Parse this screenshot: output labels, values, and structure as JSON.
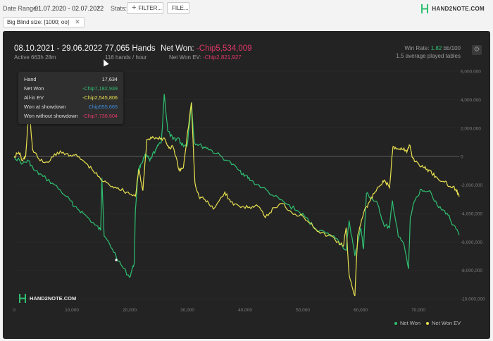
{
  "toolbar": {
    "date_range_label": "Date Range:",
    "date_range_value": "01.07.2020 - 02.07.2022",
    "stats_label": "Stats:",
    "filter_button": "FILTER...",
    "file_button": "FILE...",
    "brand": "HAND2NOTE.COM"
  },
  "filter_chip": {
    "label": "Big Blind size: [1000; oo]",
    "remove_icon": "close-icon"
  },
  "summary": {
    "period": "08.10.2021 - 29.06.2022",
    "active_time": "Active 663h 28m",
    "hands": "77,065 Hands",
    "hands_rate": "116 hands / hour",
    "net_won_label": "Net Won:",
    "net_won_value": "-Chip5,534,009",
    "net_won_ev_label": "Net Won  EV:",
    "net_won_ev_value": "-Chip2,821,927",
    "win_rate_label": "Win Rate:",
    "win_rate_value": "1.82",
    "win_rate_unit": "bb/100",
    "avg_tables": "1.5 average played tables",
    "settings_icon": "gear-icon"
  },
  "tooltip": {
    "rows": [
      {
        "label": "Hand",
        "value": "17,634"
      },
      {
        "label": "Net Won",
        "value": "-Chip7,182,939"
      },
      {
        "label": "All-in EV",
        "value": "-Chip2,545,806"
      },
      {
        "label": "Won at showdown",
        "value": "Chip555,665"
      },
      {
        "label": "Won without showdown",
        "value": "-Chip7,738,604"
      }
    ]
  },
  "chart_brand": "HAND2NOTE.COM",
  "colors": {
    "net_won": "#2fbf71",
    "net_won_ev": "#e8e04f",
    "negative": "#e0386a",
    "showdown": "#3f8fe0",
    "panel_bg": "#232323"
  },
  "chart_data": {
    "type": "line",
    "ylim": [
      -10000000,
      6000000
    ],
    "xlim": [
      0,
      77065
    ],
    "x_ticks": [
      "0",
      "10,000",
      "20,000",
      "30,000",
      "40,000",
      "50,000",
      "60,000",
      "70,000"
    ],
    "y_ticks": [
      "6,000,000",
      "4,000,000",
      "2,000,000",
      "0",
      "-2,000,000",
      "-4,000,000",
      "-6,000,000",
      "-8,000,000",
      "-10,000,000"
    ],
    "legend": [
      "Net Won",
      "Net Won  EV"
    ],
    "series": [
      {
        "name": "Net Won",
        "points": [
          [
            0,
            0
          ],
          [
            1500,
            -500000
          ],
          [
            2500,
            -300000
          ],
          [
            3500,
            -1000000
          ],
          [
            5000,
            -1400000
          ],
          [
            7000,
            -2000000
          ],
          [
            9000,
            -2800000
          ],
          [
            10500,
            -3500000
          ],
          [
            12000,
            -4000000
          ],
          [
            14000,
            -4800000
          ],
          [
            15000,
            -5200000
          ],
          [
            15200,
            -1500000
          ],
          [
            15600,
            -5600000
          ],
          [
            17000,
            -6500000
          ],
          [
            18500,
            -7600000
          ],
          [
            20000,
            -8500000
          ],
          [
            20800,
            -7500000
          ],
          [
            21000,
            -3800000
          ],
          [
            21500,
            -1000000
          ],
          [
            22000,
            -500000
          ],
          [
            22800,
            100000
          ],
          [
            23500,
            -300000
          ],
          [
            24500,
            500000
          ],
          [
            25500,
            1000000
          ],
          [
            26000,
            4400000
          ],
          [
            26600,
            1800000
          ],
          [
            27500,
            1200000
          ],
          [
            28500,
            1300000
          ],
          [
            29000,
            800000
          ],
          [
            30000,
            800000
          ],
          [
            30700,
            3800000
          ],
          [
            31200,
            1000000
          ],
          [
            32500,
            700000
          ],
          [
            33500,
            600000
          ],
          [
            35000,
            200000
          ],
          [
            37000,
            -300000
          ],
          [
            39000,
            -1000000
          ],
          [
            40000,
            -1300000
          ],
          [
            41000,
            -1700000
          ],
          [
            43000,
            -2200000
          ],
          [
            45000,
            -2800000
          ],
          [
            47000,
            -3300000
          ],
          [
            49000,
            -3800000
          ],
          [
            50500,
            -4300000
          ],
          [
            52000,
            -5000000
          ],
          [
            54000,
            -5400000
          ],
          [
            56000,
            -5800000
          ],
          [
            57500,
            -6600000
          ],
          [
            58000,
            -4500000
          ],
          [
            59000,
            -7000000
          ],
          [
            60000,
            -5000000
          ],
          [
            60500,
            -6500000
          ],
          [
            61000,
            -2600000
          ],
          [
            62000,
            -3000000
          ],
          [
            63000,
            -3400000
          ],
          [
            64000,
            -4800000
          ],
          [
            65000,
            -5000000
          ],
          [
            65500,
            -3100000
          ],
          [
            66500,
            -5600000
          ],
          [
            67500,
            -6200000
          ],
          [
            68300,
            -7900000
          ],
          [
            68600,
            -4200000
          ],
          [
            69500,
            -3000000
          ],
          [
            70500,
            -2300000
          ],
          [
            72000,
            -2400000
          ],
          [
            73500,
            -3600000
          ],
          [
            75000,
            -4000000
          ],
          [
            76000,
            -4800000
          ],
          [
            77065,
            -5534009
          ]
        ]
      },
      {
        "name": "Net Won  EV",
        "points": [
          [
            0,
            0
          ],
          [
            800,
            300000
          ],
          [
            1500,
            -300000
          ],
          [
            2000,
            0
          ],
          [
            2600,
            3500000
          ],
          [
            3200,
            500000
          ],
          [
            4500,
            -300000
          ],
          [
            6000,
            -400000
          ],
          [
            7500,
            300000
          ],
          [
            9000,
            200000
          ],
          [
            10500,
            100000
          ],
          [
            12000,
            -300000
          ],
          [
            13500,
            -900000
          ],
          [
            15000,
            -1600000
          ],
          [
            16500,
            -2000000
          ],
          [
            18000,
            -2200000
          ],
          [
            19500,
            -2500000
          ],
          [
            21000,
            -2800000
          ],
          [
            21600,
            -900000
          ],
          [
            22300,
            -2400000
          ],
          [
            23000,
            1200000
          ],
          [
            24000,
            1400000
          ],
          [
            25000,
            1200000
          ],
          [
            26000,
            1300000
          ],
          [
            26800,
            600000
          ],
          [
            27500,
            700000
          ],
          [
            28600,
            -1000000
          ],
          [
            29300,
            -800000
          ],
          [
            30700,
            3800000
          ],
          [
            31300,
            -1800000
          ],
          [
            32000,
            -2800000
          ],
          [
            33000,
            -3000000
          ],
          [
            34500,
            -3700000
          ],
          [
            36500,
            -2500000
          ],
          [
            37500,
            -3200000
          ],
          [
            39000,
            -3500000
          ],
          [
            40500,
            -3600000
          ],
          [
            42000,
            -3400000
          ],
          [
            43500,
            -4300000
          ],
          [
            45000,
            -3600000
          ],
          [
            46500,
            -3300000
          ],
          [
            48000,
            -3900000
          ],
          [
            50000,
            -4200000
          ],
          [
            51500,
            -4700000
          ],
          [
            53000,
            -5400000
          ],
          [
            55000,
            -5600000
          ],
          [
            56000,
            -6000000
          ],
          [
            57000,
            -6300000
          ],
          [
            57500,
            -5000000
          ],
          [
            58000,
            -8300000
          ],
          [
            59000,
            -9800000
          ],
          [
            59500,
            -5500000
          ],
          [
            60500,
            -4000000
          ],
          [
            61500,
            -3200000
          ],
          [
            62500,
            -2500000
          ],
          [
            63500,
            -2000000
          ],
          [
            64200,
            -1700000
          ],
          [
            65000,
            -2200000
          ],
          [
            65600,
            700000
          ],
          [
            66500,
            500000
          ],
          [
            67500,
            600000
          ],
          [
            68000,
            300000
          ],
          [
            68500,
            800000
          ],
          [
            69000,
            -100000
          ],
          [
            70000,
            -500000
          ],
          [
            71000,
            -800000
          ],
          [
            72000,
            -1000000
          ],
          [
            73000,
            -1400000
          ],
          [
            74500,
            -1800000
          ],
          [
            75500,
            -2100000
          ],
          [
            76500,
            -2300000
          ],
          [
            77065,
            -2821927
          ]
        ]
      }
    ]
  }
}
